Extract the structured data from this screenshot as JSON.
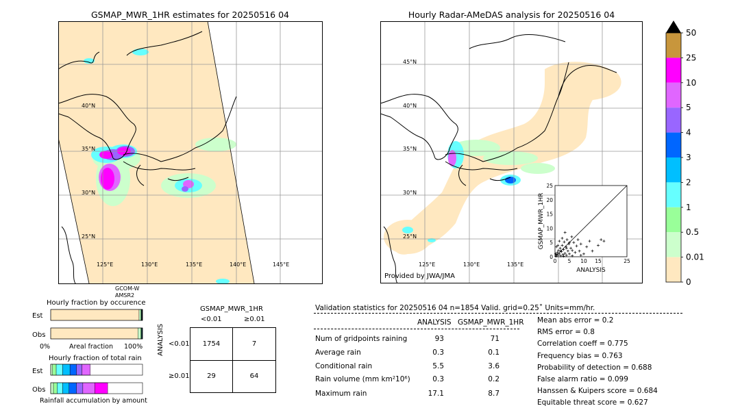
{
  "left_map": {
    "title": "GSMAP_MWR_1HR estimates for 20250516 04",
    "lat_labels": [
      "40°N",
      "35°N",
      "30°N",
      "25°N"
    ],
    "lon_labels": [
      "125°E",
      "130°E",
      "135°E",
      "140°E",
      "145°E"
    ],
    "satellite_label_1": "GCOM-W",
    "satellite_label_2": "AMSR2"
  },
  "right_map": {
    "title": "Hourly Radar-AMeDAS analysis for 20250516 04",
    "lat_labels": [
      "45°N",
      "40°N",
      "35°N",
      "30°N",
      "25°N"
    ],
    "lon_labels": [
      "125°E",
      "130°E",
      "135°E"
    ],
    "credit": "Provided by JWA/JMA"
  },
  "colorbar": {
    "labels": [
      "50",
      "25",
      "10",
      "5",
      "4",
      "3",
      "2",
      "1",
      "0.5",
      "0.01",
      "0"
    ],
    "colors": [
      "#c8963c",
      "#ff00ff",
      "#e066ff",
      "#9966ff",
      "#0066ff",
      "#00bfff",
      "#66ffff",
      "#99ff99",
      "#ccffcc",
      "#ffe8c0"
    ]
  },
  "chart_data": [
    {
      "type": "scatter",
      "xlabel": "ANALYSIS",
      "ylabel": "GSMAP_MWR_1HR",
      "xlim": [
        0,
        25
      ],
      "ylim": [
        0,
        25
      ],
      "xticks": [
        "0",
        "5",
        "10",
        "15",
        "25"
      ],
      "yticks": [
        "0",
        "5",
        "10",
        "15",
        "20",
        "25"
      ],
      "points": [
        [
          0.3,
          0.2
        ],
        [
          0.5,
          0.8
        ],
        [
          0.8,
          1.5
        ],
        [
          1.0,
          0.5
        ],
        [
          1.2,
          2.2
        ],
        [
          1.5,
          1.0
        ],
        [
          1.8,
          3.0
        ],
        [
          2.0,
          0.3
        ],
        [
          2.2,
          1.8
        ],
        [
          2.5,
          4.0
        ],
        [
          2.8,
          0.8
        ],
        [
          3.0,
          2.5
        ],
        [
          3.2,
          5.2
        ],
        [
          3.5,
          1.2
        ],
        [
          3.8,
          3.5
        ],
        [
          4.0,
          0.5
        ],
        [
          4.2,
          6.0
        ],
        [
          4.5,
          2.0
        ],
        [
          4.8,
          4.5
        ],
        [
          5.0,
          1.0
        ],
        [
          5.5,
          3.0
        ],
        [
          5.8,
          7.0
        ],
        [
          6.0,
          2.2
        ],
        [
          6.5,
          5.0
        ],
        [
          7.0,
          1.5
        ],
        [
          7.5,
          3.8
        ],
        [
          8.0,
          6.0
        ],
        [
          8.5,
          2.0
        ],
        [
          9.0,
          4.5
        ],
        [
          10.0,
          1.0
        ],
        [
          11.0,
          3.5
        ],
        [
          12.0,
          5.5
        ],
        [
          13.0,
          2.0
        ],
        [
          15.0,
          4.0
        ],
        [
          16.0,
          6.0
        ],
        [
          17.0,
          5.5
        ],
        [
          1.5,
          5.5
        ],
        [
          2.5,
          6.5
        ],
        [
          3.5,
          8.5
        ],
        [
          0.5,
          3.5
        ],
        [
          1.0,
          4.0
        ],
        [
          6.0,
          0.3
        ],
        [
          9.0,
          0.5
        ],
        [
          0.2,
          1.0
        ],
        [
          2.0,
          2.0
        ],
        [
          3.0,
          0.2
        ],
        [
          4.0,
          3.0
        ],
        [
          5.0,
          5.0
        ]
      ]
    },
    {
      "type": "bar",
      "title": "Hourly fraction by occurence",
      "categories": [
        "Est",
        "Obs"
      ],
      "xlabel": "Areal fraction",
      "xtick_left": "0%",
      "xtick_right": "100%",
      "series": [
        {
          "values": [
            0.9627,
            0.9498
          ],
          "color": "#ffe8c0"
        },
        {
          "values": [
            0.0169,
            0.0291
          ],
          "color": "#ccffcc"
        },
        {
          "values": [
            0.0073,
            0.008
          ],
          "color": "#99ff99"
        },
        {
          "values": [
            0.0047,
            0.0053
          ],
          "color": "#66ffff"
        },
        {
          "values": [
            0.003,
            0.0037
          ],
          "color": "#00bfff"
        },
        {
          "values": [
            0.0024,
            0.002
          ],
          "color": "#0066ff"
        },
        {
          "values": [
            0.003,
            0.0021
          ],
          "color": "#000080"
        }
      ]
    },
    {
      "type": "bar",
      "title": "Hourly fraction of total rain",
      "categories": [
        "Est",
        "Obs"
      ],
      "xlabel": "Rainfall accumulation by amount",
      "series": [
        {
          "values": [
            0.02,
            0.03
          ],
          "color": "#ccffcc"
        },
        {
          "values": [
            0.04,
            0.04
          ],
          "color": "#99ff99"
        },
        {
          "values": [
            0.07,
            0.06
          ],
          "color": "#66ffff"
        },
        {
          "values": [
            0.08,
            0.07
          ],
          "color": "#00bfff"
        },
        {
          "values": [
            0.07,
            0.08
          ],
          "color": "#0066ff"
        },
        {
          "values": [
            0.06,
            0.07
          ],
          "color": "#9966ff"
        },
        {
          "values": [
            0.09,
            0.13
          ],
          "color": "#e066ff"
        },
        {
          "values": [
            0.0,
            0.14
          ],
          "color": "#ff00ff"
        }
      ]
    },
    {
      "type": "table",
      "title": "GSMAP_MWR_1HR",
      "col_labels": [
        "<0.01",
        "≥0.01"
      ],
      "row_title": "ANALYSIS",
      "row_labels": [
        "<0.01",
        "≥0.01"
      ],
      "cells": [
        [
          "1754",
          "7"
        ],
        [
          "29",
          "64"
        ]
      ]
    }
  ],
  "validation": {
    "header": "Validation statistics for 20250516 04  n=1854 Valid. grid=0.25˚ Units=mm/hr.",
    "col_analysis": "ANALYSIS",
    "col_gsmap": "GSMAP_MWR_1HR",
    "rows": [
      {
        "label": "Num of gridpoints raining",
        "analysis": "93",
        "gsmap": "71"
      },
      {
        "label": "Average rain",
        "analysis": "0.3",
        "gsmap": "0.1"
      },
      {
        "label": "Conditional rain",
        "analysis": "5.5",
        "gsmap": "3.6"
      },
      {
        "label": "Rain volume (mm km²10⁶)",
        "analysis": "0.3",
        "gsmap": "0.2"
      },
      {
        "label": "Maximum rain",
        "analysis": "17.1",
        "gsmap": "8.7"
      }
    ],
    "scores": [
      "Mean abs error =    0.2",
      "RMS error =    0.8",
      "Correlation coeff =  0.775",
      "Frequency bias =  0.763",
      "Probability of detection =  0.688",
      "False alarm ratio =  0.099",
      "Hanssen & Kuipers score =  0.684",
      "Equitable threat score =  0.627"
    ]
  }
}
